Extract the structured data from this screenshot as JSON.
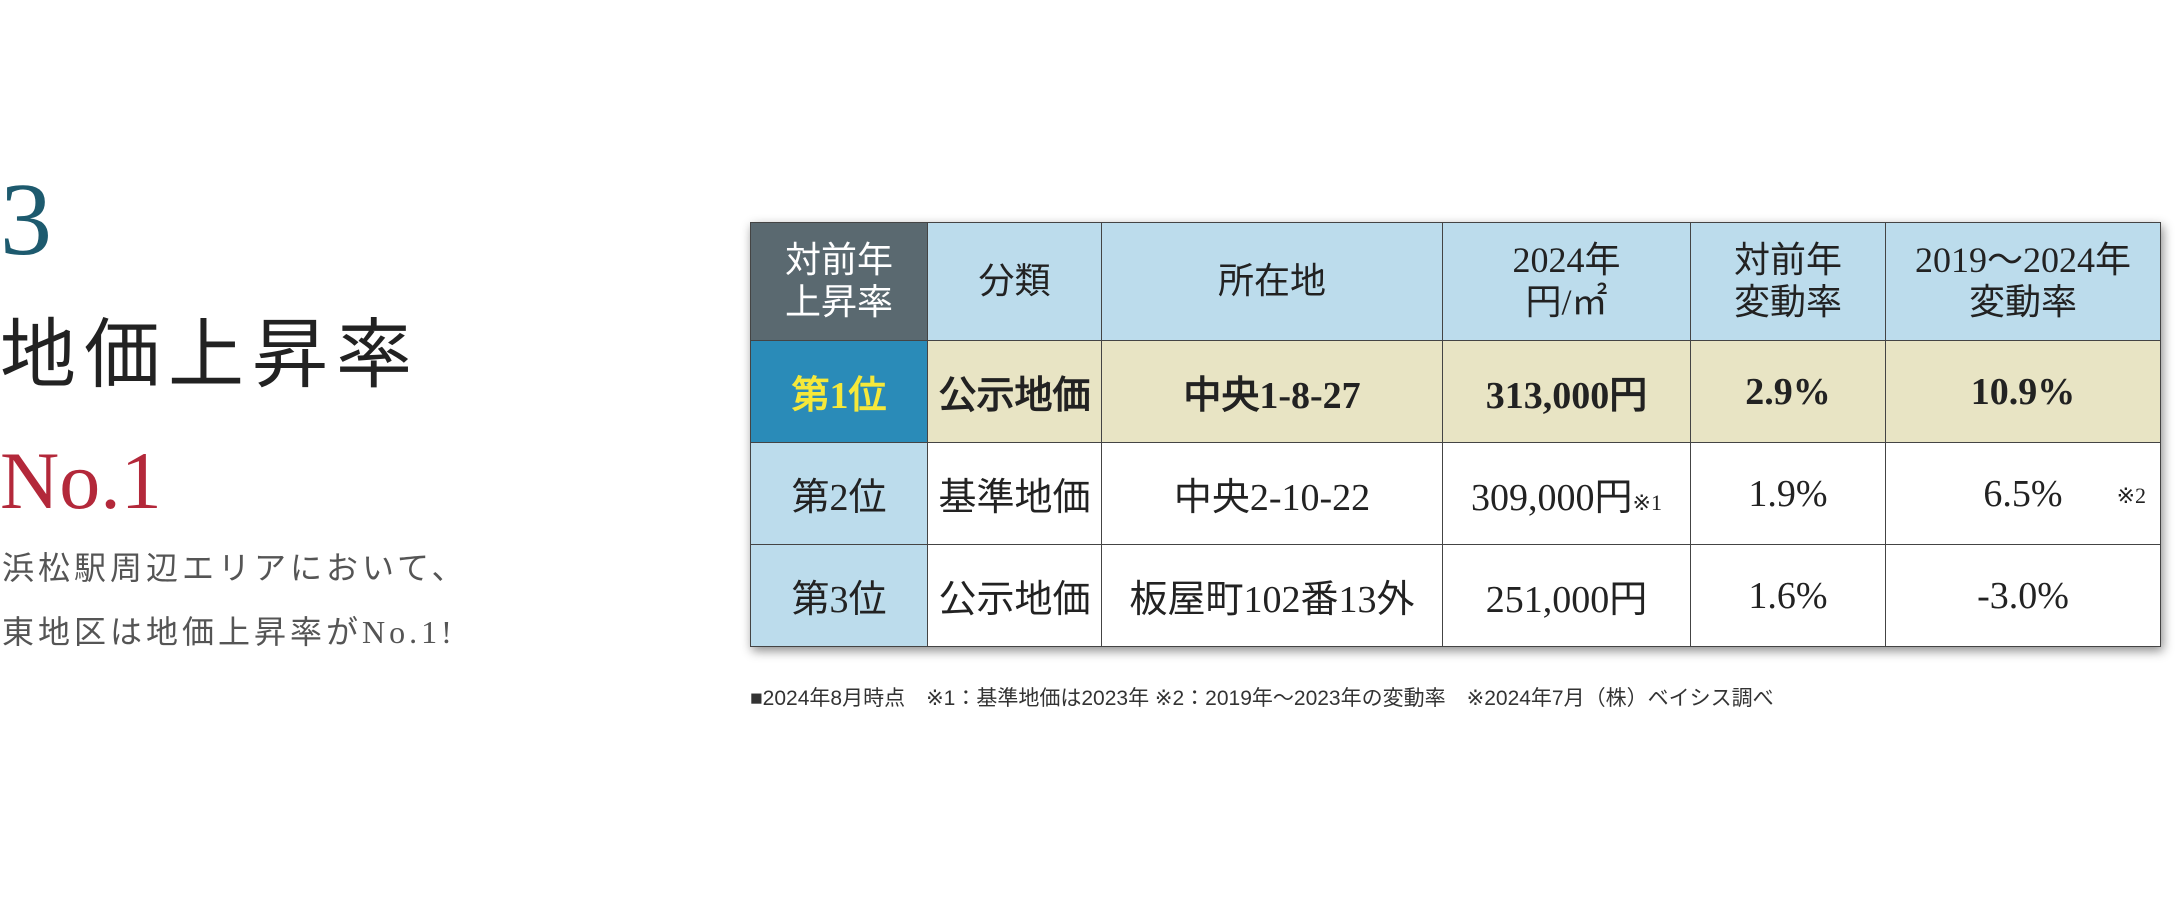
{
  "intro": {
    "number": "3",
    "title": "地価上昇率",
    "rank": "No.1",
    "lines": [
      "浜松駅周辺エリアにおいて、",
      "東地区は地価上昇率がNo.1!"
    ]
  },
  "table": {
    "header": [
      [
        "対前年",
        "上昇率"
      ],
      [
        "分類"
      ],
      [
        "所在地"
      ],
      [
        "2024年",
        "円/㎡"
      ],
      [
        "対前年",
        "変動率"
      ],
      [
        "2019～2024年",
        "変動率"
      ]
    ],
    "rows": [
      {
        "rank": "第1位",
        "type": "公示地価",
        "location": "中央1-8-27",
        "price": "313,000円",
        "yoy": "2.9%",
        "change": "10.9%"
      },
      {
        "rank": "第2位",
        "type": "基準地価",
        "location": "中央2-10-22",
        "price": "309,000円",
        "price_note": "※1",
        "yoy": "1.9%",
        "change": "6.5%",
        "change_note": "※2"
      },
      {
        "rank": "第3位",
        "type": "公示地価",
        "location": "板屋町102番13外",
        "price": "251,000円",
        "yoy": "1.6%",
        "change": "-3.0%"
      }
    ]
  },
  "footnote": "■2024年8月時点　※1：基準地価は2023年  ※2：2019年～2023年の変動率　※2024年7月（株）ベイシス調べ"
}
